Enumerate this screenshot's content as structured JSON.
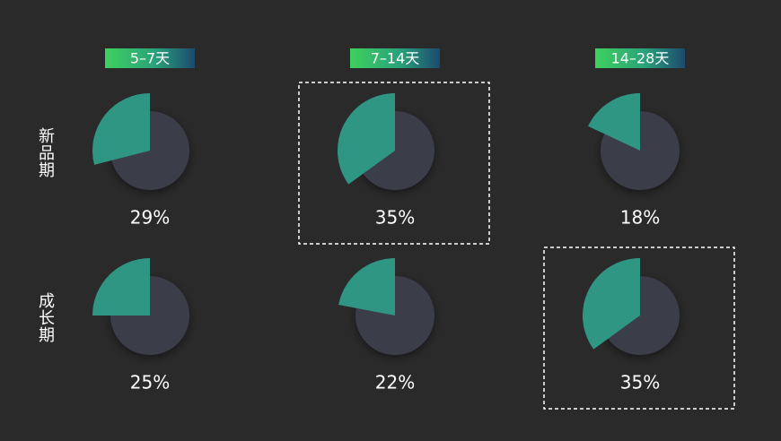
{
  "chart_data": {
    "type": "sector-grid",
    "categories": [
      "5–7天",
      "7–14天",
      "14–28天"
    ],
    "series": [
      {
        "name": "新品期",
        "color": "#2e9682",
        "values": [
          29,
          35,
          18
        ],
        "value_labels": [
          "29%",
          "35%",
          "18%"
        ]
      },
      {
        "name": "成长期",
        "color": "#2e9682",
        "values": [
          25,
          22,
          35
        ],
        "value_labels": [
          "25%",
          "22%",
          "35%"
        ]
      }
    ]
  }
}
